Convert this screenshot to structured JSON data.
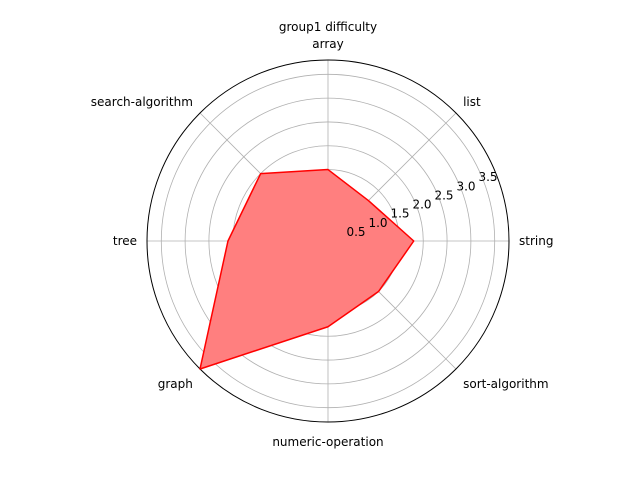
{
  "chart_data": {
    "type": "radar",
    "title": "group1 difficulty",
    "categories": [
      "array",
      "list",
      "string",
      "sort-algorithm",
      "numeric-operation",
      "graph",
      "tree",
      "search-algorithm"
    ],
    "values": [
      1.5,
      1.2,
      1.8,
      1.5,
      1.8,
      3.8,
      2.1,
      2.0
    ],
    "rlim": [
      0,
      3.8
    ],
    "rticks": [
      0.5,
      1.0,
      1.5,
      2.0,
      2.5,
      3.0,
      3.5
    ],
    "rtick_labels": [
      "0.5",
      "1.0",
      "1.5",
      "2.0",
      "2.5",
      "3.0",
      "3.5"
    ],
    "grid": true,
    "series_color": "#ff0000",
    "fill_color": "#ff7f7f"
  }
}
